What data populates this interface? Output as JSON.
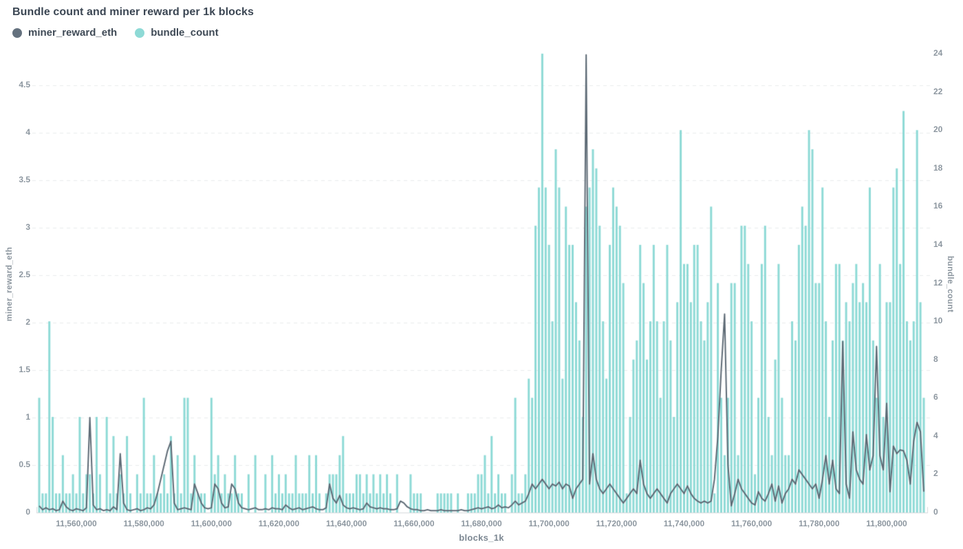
{
  "title": "Bundle count and miner reward per 1k blocks",
  "legend": [
    {
      "label": "miner_reward_eth",
      "color": "#64717e"
    },
    {
      "label": "bundle_count",
      "color": "#8edad6"
    }
  ],
  "axes": {
    "left_title": "miner_reward_eth",
    "right_title": "bundle_count",
    "x_title": "blocks_1k",
    "y_left_ticks": [
      "0",
      "0.5",
      "1",
      "1.5",
      "2",
      "2.5",
      "3",
      "3.5",
      "4",
      "4.5"
    ],
    "y_left_values": [
      0,
      0.5,
      1,
      1.5,
      2,
      2.5,
      3,
      3.5,
      4,
      4.5
    ],
    "y_right_ticks": [
      "0",
      "2",
      "4",
      "6",
      "8",
      "10",
      "12",
      "14",
      "16",
      "18",
      "20",
      "22",
      "24"
    ],
    "y_right_values": [
      0,
      2,
      4,
      6,
      8,
      10,
      12,
      14,
      16,
      18,
      20,
      22,
      24
    ],
    "x_ticks": [
      {
        "value": 11560,
        "label": "11,560,000"
      },
      {
        "value": 11580,
        "label": "11,580,000"
      },
      {
        "value": 11600,
        "label": "11,600,000"
      },
      {
        "value": 11620,
        "label": "11,620,000"
      },
      {
        "value": 11640,
        "label": "11,640,000"
      },
      {
        "value": 11660,
        "label": "11,660,000"
      },
      {
        "value": 11680,
        "label": "11,680,000"
      },
      {
        "value": 11700,
        "label": "11,700,000"
      },
      {
        "value": 11720,
        "label": "11,720,000"
      },
      {
        "value": 11740,
        "label": "11,740,000"
      },
      {
        "value": 11760,
        "label": "11,760,000"
      },
      {
        "value": 11780,
        "label": "11,780,000"
      },
      {
        "value": 11800,
        "label": "11,800,000"
      }
    ]
  },
  "colors": {
    "bar": "#8edad6",
    "line": "#5d6a75",
    "grid": "#e9ebed",
    "axis_line": "#d6dadd",
    "tick_text": "#8d97a0",
    "background": "#ffffff"
  },
  "chart_data": {
    "type": "combo",
    "title": "Bundle count and miner reward per 1k blocks",
    "xlabel": "blocks_1k",
    "x_start": 11549,
    "x_step": 1,
    "x_end": 11811,
    "x_unit": "block number (thousands shown as full numbers on axis)",
    "grid": "horizontal dashed, every 0.5 eth of left axis",
    "legend_position": "top-left",
    "axis_left": {
      "label": "miner_reward_eth",
      "range": [
        0,
        4.83
      ]
    },
    "axis_right": {
      "label": "bundle_count",
      "range": [
        0,
        24
      ]
    },
    "series": [
      {
        "name": "bundle_count",
        "type": "bar",
        "axis": "right",
        "values": [
          6,
          1,
          1,
          10,
          5,
          1,
          1,
          3,
          1,
          1,
          2,
          1,
          5,
          1,
          2,
          2,
          1,
          5,
          2,
          0,
          5,
          1,
          4,
          1,
          2,
          1,
          4,
          1,
          0,
          2,
          1,
          6,
          1,
          1,
          3,
          1,
          1,
          2,
          1,
          4,
          1,
          3,
          1,
          6,
          6,
          1,
          3,
          1,
          1,
          1,
          0,
          6,
          2,
          3,
          1,
          2,
          1,
          1,
          3,
          1,
          1,
          0,
          2,
          0,
          3,
          0,
          0,
          2,
          0,
          3,
          1,
          2,
          1,
          2,
          1,
          1,
          3,
          1,
          1,
          1,
          3,
          1,
          3,
          1,
          0,
          1,
          2,
          2,
          2,
          3,
          4,
          1,
          1,
          1,
          2,
          2,
          1,
          2,
          1,
          2,
          1,
          2,
          1,
          2,
          1,
          0,
          2,
          0,
          0,
          0,
          2,
          1,
          1,
          1,
          0,
          0,
          0,
          0,
          1,
          1,
          1,
          1,
          1,
          0,
          1,
          0,
          0,
          1,
          1,
          1,
          2,
          2,
          3,
          1,
          4,
          1,
          2,
          1,
          1,
          0,
          2,
          6,
          1,
          1,
          2,
          7,
          6,
          15,
          17,
          24,
          17,
          14,
          10,
          19,
          17,
          7,
          16,
          14,
          14,
          11,
          9,
          5,
          16,
          17,
          19,
          18,
          15,
          10,
          7,
          14,
          17,
          16,
          15,
          12,
          1,
          5,
          8,
          9,
          14,
          12,
          8,
          10,
          14,
          10,
          6,
          10,
          14,
          9,
          5,
          11,
          20,
          13,
          13,
          11,
          14,
          14,
          10,
          9,
          11,
          16,
          1,
          12,
          6,
          3,
          6,
          12,
          12,
          3,
          15,
          15,
          13,
          10,
          2,
          6,
          13,
          15,
          5,
          3,
          8,
          13,
          6,
          3,
          3,
          10,
          9,
          14,
          16,
          15,
          20,
          19,
          12,
          12,
          17,
          10,
          5,
          9,
          13,
          13,
          9,
          11,
          10,
          12,
          13,
          11,
          12,
          11,
          17,
          9,
          6,
          13,
          5,
          11,
          11,
          17,
          18,
          13,
          21,
          10,
          9,
          10,
          20,
          11,
          6
        ]
      },
      {
        "name": "miner_reward_eth",
        "type": "line",
        "axis": "left",
        "values": [
          0.07,
          0.03,
          0.05,
          0.03,
          0.04,
          0.02,
          0.03,
          0.12,
          0.06,
          0.03,
          0.02,
          0.04,
          0.03,
          0.02,
          0.05,
          1.0,
          0.08,
          0.03,
          0.04,
          0.02,
          0.03,
          0.02,
          0.06,
          0.03,
          0.62,
          0.1,
          0.03,
          0.02,
          0.03,
          0.04,
          0.02,
          0.03,
          0.05,
          0.04,
          0.08,
          0.2,
          0.35,
          0.5,
          0.65,
          0.75,
          0.1,
          0.03,
          0.04,
          0.05,
          0.04,
          0.03,
          0.3,
          0.2,
          0.1,
          0.05,
          0.04,
          0.05,
          0.3,
          0.25,
          0.1,
          0.05,
          0.06,
          0.3,
          0.25,
          0.1,
          0.05,
          0.04,
          0.03,
          0.04,
          0.05,
          0.03,
          0.03,
          0.04,
          0.03,
          0.05,
          0.04,
          0.04,
          0.03,
          0.08,
          0.05,
          0.03,
          0.04,
          0.05,
          0.03,
          0.04,
          0.05,
          0.06,
          0.04,
          0.03,
          0.03,
          0.05,
          0.3,
          0.15,
          0.1,
          0.18,
          0.08,
          0.05,
          0.04,
          0.05,
          0.04,
          0.03,
          0.04,
          0.1,
          0.06,
          0.05,
          0.04,
          0.05,
          0.04,
          0.04,
          0.03,
          0.03,
          0.04,
          0.12,
          0.1,
          0.06,
          0.04,
          0.03,
          0.03,
          0.02,
          0.02,
          0.03,
          0.02,
          0.02,
          0.02,
          0.03,
          0.02,
          0.02,
          0.02,
          0.02,
          0.02,
          0.03,
          0.02,
          0.02,
          0.03,
          0.04,
          0.05,
          0.04,
          0.05,
          0.06,
          0.04,
          0.05,
          0.08,
          0.05,
          0.06,
          0.05,
          0.08,
          0.12,
          0.08,
          0.1,
          0.12,
          0.2,
          0.3,
          0.25,
          0.3,
          0.35,
          0.3,
          0.25,
          0.3,
          0.28,
          0.32,
          0.25,
          0.3,
          0.28,
          0.15,
          0.25,
          0.3,
          0.35,
          4.82,
          0.3,
          0.62,
          0.35,
          0.25,
          0.2,
          0.25,
          0.3,
          0.25,
          0.2,
          0.15,
          0.1,
          0.15,
          0.2,
          0.25,
          0.2,
          0.55,
          0.3,
          0.2,
          0.15,
          0.2,
          0.25,
          0.2,
          0.15,
          0.1,
          0.2,
          0.25,
          0.3,
          0.25,
          0.2,
          0.28,
          0.2,
          0.15,
          0.12,
          0.1,
          0.12,
          0.1,
          0.12,
          0.35,
          0.8,
          1.5,
          2.09,
          0.5,
          0.07,
          0.2,
          0.35,
          0.25,
          0.2,
          0.15,
          0.1,
          0.08,
          0.22,
          0.15,
          0.12,
          0.2,
          0.3,
          0.12,
          0.28,
          0.1,
          0.2,
          0.25,
          0.35,
          0.3,
          0.45,
          0.4,
          0.35,
          0.3,
          0.25,
          0.3,
          0.15,
          0.35,
          0.6,
          0.3,
          0.55,
          0.25,
          0.2,
          1.8,
          0.3,
          0.15,
          0.85,
          0.45,
          0.35,
          0.3,
          0.82,
          0.45,
          0.6,
          1.75,
          0.6,
          0.45,
          1.15,
          0.22,
          0.7,
          0.62,
          0.66,
          0.65,
          0.55,
          0.3,
          0.75,
          0.95,
          0.85,
          0.22
        ]
      }
    ]
  }
}
